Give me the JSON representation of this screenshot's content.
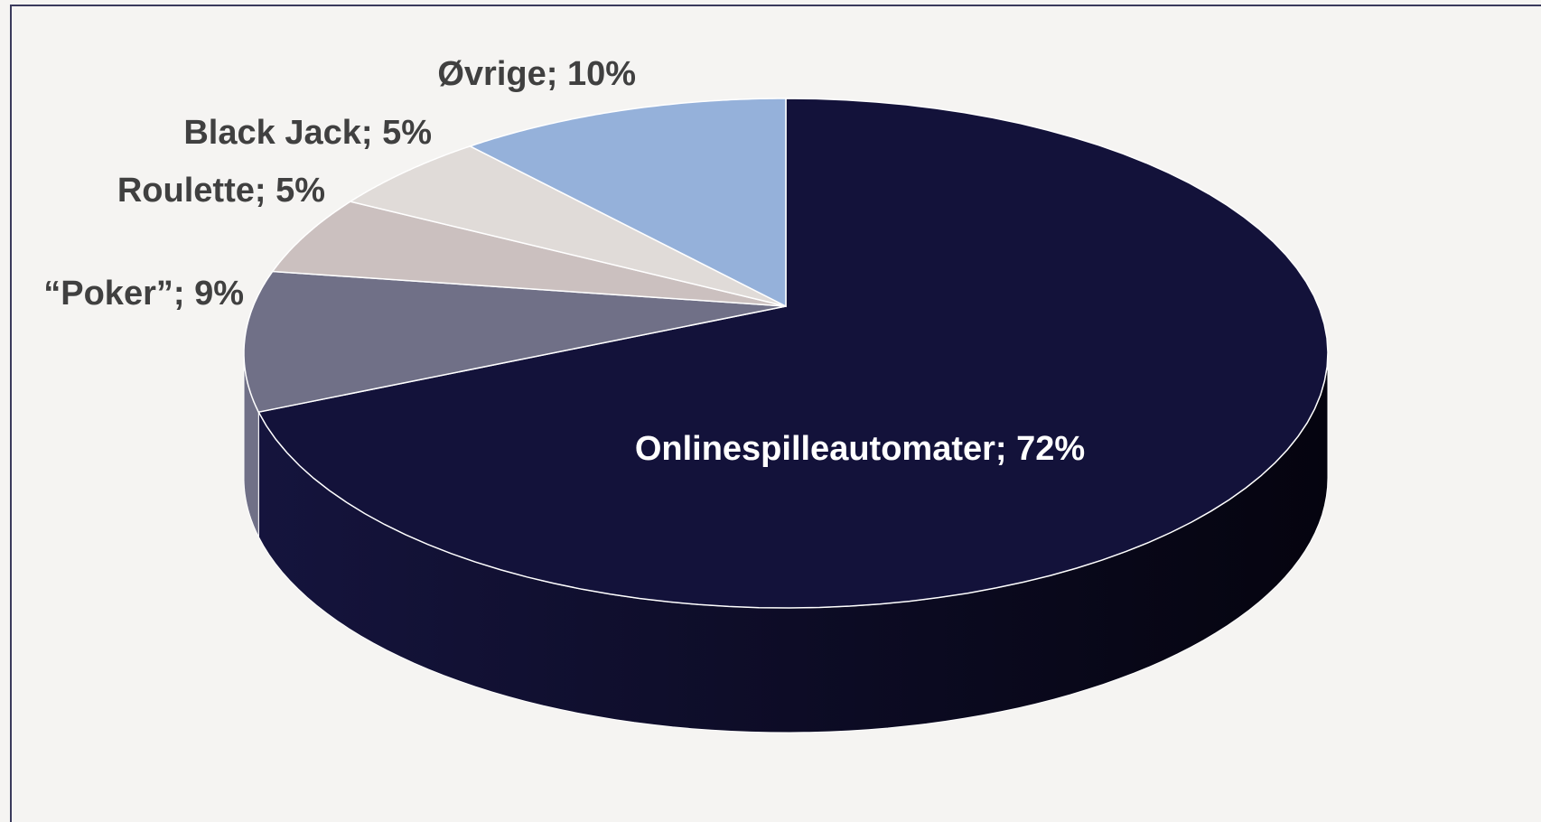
{
  "chart_data": {
    "type": "pie",
    "values": [
      72,
      9,
      5,
      5,
      10
    ],
    "value_labels": [
      "Onlinespilleautomater; 72%",
      "“Poker”; 9%",
      "Roulette; 5%",
      "Black Jack; 5%",
      "Øvrige; 10%"
    ],
    "colors": [
      "#13123a",
      "#707087",
      "#cbc0bf",
      "#e0dbd8",
      "#95b1da"
    ]
  }
}
